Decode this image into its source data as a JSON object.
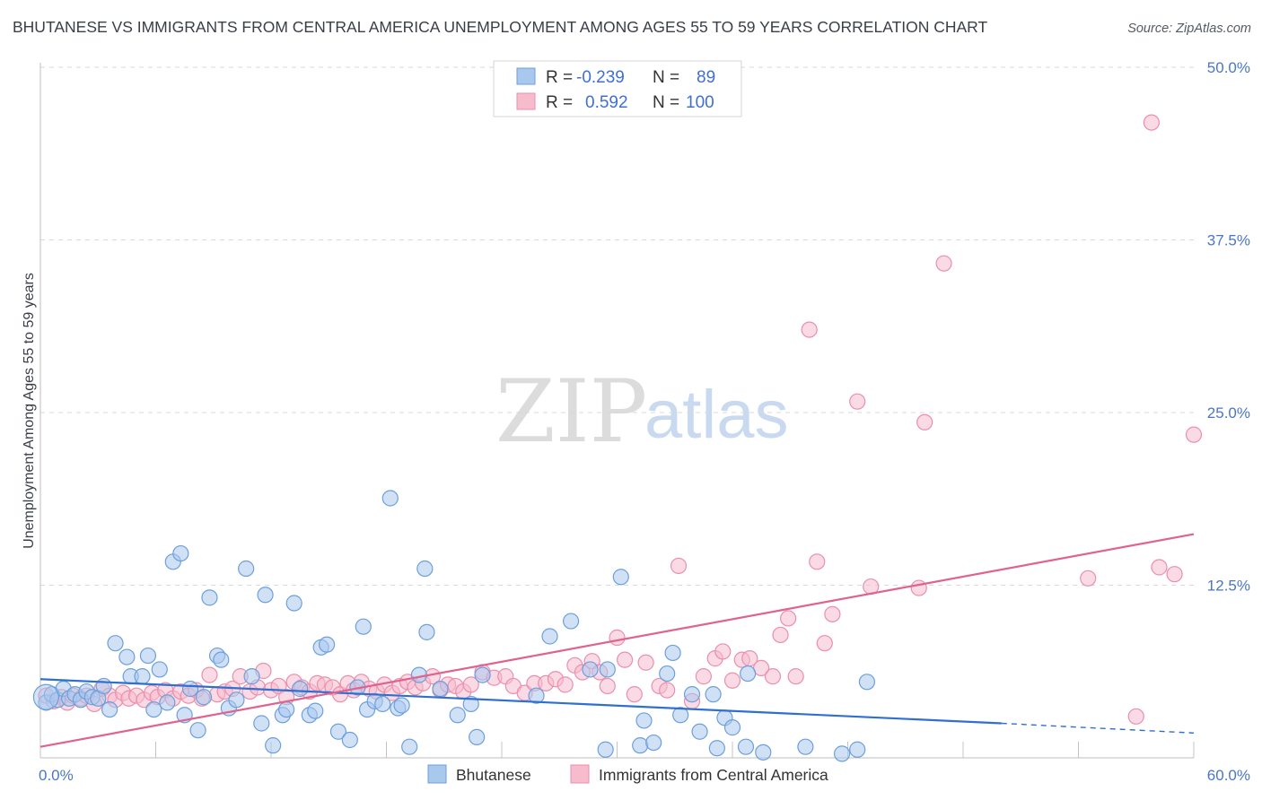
{
  "title": "BHUTANESE VS IMMIGRANTS FROM CENTRAL AMERICA UNEMPLOYMENT AMONG AGES 55 TO 59 YEARS CORRELATION CHART",
  "source": "Source: ZipAtlas.com",
  "watermark": {
    "zip": "ZIP",
    "atlas": "atlas"
  },
  "legend": {
    "rows": [
      {
        "r_label": "R =",
        "r_value": "-0.239",
        "n_label": "N =",
        "n_value": "89"
      },
      {
        "r_label": "R =",
        "r_value": "0.592",
        "n_label": "N =",
        "n_value": "100"
      }
    ]
  },
  "colors": {
    "blue_fill": "#a9c8ee",
    "blue_stroke": "#6d9fdc",
    "blue_line": "#2f6fd0",
    "pink_fill": "#f6bccd",
    "pink_stroke": "#eb8fab",
    "pink_line": "#e0628f",
    "grid": "#d9d9d9",
    "tick_text": "#4a76c6"
  },
  "chart_data": {
    "type": "scatter",
    "xlabel": "",
    "ylabel": "Unemployment Among Ages 55 to 59 years",
    "xlim": [
      0,
      60
    ],
    "ylim": [
      0,
      50
    ],
    "x_tick_labels": [
      {
        "x": 0,
        "label": "0.0%"
      },
      {
        "x": 60,
        "label": "60.0%"
      }
    ],
    "y_tick_labels": [
      {
        "y": 12.5,
        "label": "12.5%"
      },
      {
        "y": 25,
        "label": "25.0%"
      },
      {
        "y": 37.5,
        "label": "37.5%"
      },
      {
        "y": 50,
        "label": "50.0%"
      }
    ],
    "grid": "horizontal dashed",
    "legend_position": "top-center",
    "series": [
      {
        "name": "Bhutanese",
        "trend": {
          "x": [
            0,
            50
          ],
          "y": [
            5.7,
            2.5
          ],
          "dashed_extension": {
            "x": [
              50,
              60
            ],
            "y": [
              2.5,
              1.8
            ]
          }
        },
        "points": [
          [
            0.3,
            4.0
          ],
          [
            0.6,
            4.6
          ],
          [
            0.9,
            4.2
          ],
          [
            1.2,
            5.0
          ],
          [
            1.5,
            4.3
          ],
          [
            1.8,
            4.6
          ],
          [
            2.1,
            4.2
          ],
          [
            2.4,
            4.8
          ],
          [
            2.7,
            4.4
          ],
          [
            3.0,
            4.3
          ],
          [
            3.3,
            5.2
          ],
          [
            3.6,
            3.5
          ],
          [
            3.9,
            8.3
          ],
          [
            4.5,
            7.3
          ],
          [
            4.7,
            5.9
          ],
          [
            5.3,
            5.9
          ],
          [
            5.6,
            7.4
          ],
          [
            5.9,
            3.5
          ],
          [
            6.2,
            6.4
          ],
          [
            6.6,
            4.0
          ],
          [
            6.9,
            14.2
          ],
          [
            7.3,
            14.8
          ],
          [
            7.5,
            3.1
          ],
          [
            7.8,
            5.0
          ],
          [
            8.2,
            2.0
          ],
          [
            8.5,
            4.4
          ],
          [
            8.8,
            11.6
          ],
          [
            9.2,
            7.4
          ],
          [
            9.4,
            7.1
          ],
          [
            9.8,
            3.6
          ],
          [
            10.2,
            4.2
          ],
          [
            10.7,
            13.7
          ],
          [
            11.0,
            5.9
          ],
          [
            11.5,
            2.5
          ],
          [
            11.7,
            11.8
          ],
          [
            12.1,
            0.9
          ],
          [
            12.6,
            3.1
          ],
          [
            12.8,
            3.5
          ],
          [
            13.2,
            11.2
          ],
          [
            13.5,
            5.0
          ],
          [
            14.0,
            3.1
          ],
          [
            14.3,
            3.4
          ],
          [
            14.6,
            8.0
          ],
          [
            14.9,
            8.2
          ],
          [
            15.5,
            1.9
          ],
          [
            16.1,
            1.3
          ],
          [
            16.5,
            5.1
          ],
          [
            16.8,
            9.5
          ],
          [
            17.0,
            3.5
          ],
          [
            17.4,
            4.1
          ],
          [
            17.8,
            3.9
          ],
          [
            18.2,
            18.8
          ],
          [
            18.6,
            3.6
          ],
          [
            18.8,
            3.8
          ],
          [
            19.2,
            0.8
          ],
          [
            19.7,
            6.0
          ],
          [
            20.0,
            13.7
          ],
          [
            20.1,
            9.1
          ],
          [
            20.8,
            5.0
          ],
          [
            21.7,
            3.1
          ],
          [
            22.4,
            3.9
          ],
          [
            22.7,
            1.5
          ],
          [
            23.0,
            6.0
          ],
          [
            25.8,
            4.5
          ],
          [
            26.5,
            8.8
          ],
          [
            27.6,
            9.9
          ],
          [
            28.6,
            6.4
          ],
          [
            29.4,
            0.6
          ],
          [
            29.5,
            6.4
          ],
          [
            30.2,
            13.1
          ],
          [
            31.2,
            0.9
          ],
          [
            31.4,
            2.7
          ],
          [
            31.9,
            1.1
          ],
          [
            32.6,
            6.1
          ],
          [
            32.9,
            7.6
          ],
          [
            33.3,
            3.1
          ],
          [
            33.9,
            4.6
          ],
          [
            34.3,
            1.9
          ],
          [
            35.0,
            4.6
          ],
          [
            35.2,
            0.7
          ],
          [
            35.6,
            2.9
          ],
          [
            36.0,
            2.2
          ],
          [
            36.7,
            0.8
          ],
          [
            36.8,
            6.1
          ],
          [
            37.6,
            0.4
          ],
          [
            39.8,
            0.8
          ],
          [
            41.7,
            0.3
          ],
          [
            42.5,
            0.6
          ],
          [
            43.0,
            5.5
          ]
        ]
      },
      {
        "name": "Immigrants from Central America",
        "trend": {
          "x": [
            0,
            60
          ],
          "y": [
            0.8,
            16.2
          ]
        },
        "points": [
          [
            0.3,
            4.5
          ],
          [
            0.7,
            4.1
          ],
          [
            1.1,
            4.4
          ],
          [
            1.4,
            4.0
          ],
          [
            1.7,
            4.5
          ],
          [
            2.1,
            4.3
          ],
          [
            2.4,
            4.5
          ],
          [
            2.8,
            3.9
          ],
          [
            3.2,
            5.0
          ],
          [
            3.6,
            4.5
          ],
          [
            3.9,
            4.2
          ],
          [
            4.3,
            4.7
          ],
          [
            4.6,
            4.3
          ],
          [
            5.0,
            4.5
          ],
          [
            5.4,
            4.2
          ],
          [
            5.8,
            4.7
          ],
          [
            6.1,
            4.4
          ],
          [
            6.5,
            4.9
          ],
          [
            6.9,
            4.3
          ],
          [
            7.3,
            4.8
          ],
          [
            7.7,
            4.5
          ],
          [
            8.1,
            4.9
          ],
          [
            8.4,
            4.3
          ],
          [
            8.8,
            6.0
          ],
          [
            9.2,
            4.6
          ],
          [
            9.6,
            4.8
          ],
          [
            10.0,
            5.0
          ],
          [
            10.4,
            5.9
          ],
          [
            10.9,
            4.8
          ],
          [
            11.3,
            5.1
          ],
          [
            11.6,
            6.3
          ],
          [
            12.0,
            4.9
          ],
          [
            12.4,
            5.2
          ],
          [
            12.8,
            4.4
          ],
          [
            13.2,
            5.5
          ],
          [
            13.6,
            5.1
          ],
          [
            14.0,
            4.8
          ],
          [
            14.4,
            5.4
          ],
          [
            14.8,
            5.3
          ],
          [
            15.2,
            5.1
          ],
          [
            15.6,
            4.6
          ],
          [
            16.0,
            5.4
          ],
          [
            16.3,
            4.9
          ],
          [
            16.7,
            5.5
          ],
          [
            17.1,
            5.0
          ],
          [
            17.5,
            4.8
          ],
          [
            17.9,
            5.3
          ],
          [
            18.3,
            4.7
          ],
          [
            18.7,
            5.2
          ],
          [
            19.1,
            5.5
          ],
          [
            19.5,
            5.1
          ],
          [
            19.9,
            5.4
          ],
          [
            20.4,
            5.9
          ],
          [
            20.8,
            4.9
          ],
          [
            21.2,
            5.3
          ],
          [
            21.6,
            5.2
          ],
          [
            22.0,
            4.8
          ],
          [
            22.4,
            5.3
          ],
          [
            23.0,
            6.2
          ],
          [
            23.6,
            5.8
          ],
          [
            24.2,
            5.9
          ],
          [
            24.6,
            5.2
          ],
          [
            25.2,
            4.7
          ],
          [
            25.7,
            5.4
          ],
          [
            26.3,
            5.4
          ],
          [
            26.8,
            5.7
          ],
          [
            27.3,
            5.3
          ],
          [
            27.8,
            6.7
          ],
          [
            28.2,
            6.2
          ],
          [
            28.7,
            7.0
          ],
          [
            29.1,
            6.2
          ],
          [
            29.5,
            5.2
          ],
          [
            30.0,
            8.7
          ],
          [
            30.4,
            7.1
          ],
          [
            30.9,
            4.6
          ],
          [
            31.5,
            6.9
          ],
          [
            32.2,
            5.2
          ],
          [
            32.6,
            4.9
          ],
          [
            33.2,
            13.9
          ],
          [
            33.9,
            4.1
          ],
          [
            34.5,
            5.9
          ],
          [
            35.1,
            7.2
          ],
          [
            35.5,
            7.7
          ],
          [
            36.0,
            5.6
          ],
          [
            36.5,
            7.1
          ],
          [
            36.9,
            7.2
          ],
          [
            37.5,
            6.5
          ],
          [
            38.1,
            5.9
          ],
          [
            38.5,
            8.9
          ],
          [
            38.9,
            10.1
          ],
          [
            39.3,
            5.9
          ],
          [
            40.0,
            31.0
          ],
          [
            40.4,
            14.2
          ],
          [
            40.8,
            8.3
          ],
          [
            41.2,
            10.4
          ],
          [
            42.5,
            25.8
          ],
          [
            43.2,
            12.4
          ],
          [
            45.7,
            12.3
          ],
          [
            46.0,
            24.3
          ],
          [
            47.0,
            35.8
          ]
        ]
      },
      {
        "name": "Immigrants from Central America (upper-right)",
        "points": [
          [
            57.8,
            46.0
          ],
          [
            58.2,
            13.8
          ],
          [
            59.0,
            13.3
          ],
          [
            60.0,
            23.4
          ],
          [
            57.0,
            3.0
          ],
          [
            54.5,
            13.0
          ]
        ]
      }
    ]
  },
  "bottom_legend": {
    "items": [
      "Bhutanese",
      "Immigrants from Central America"
    ]
  }
}
